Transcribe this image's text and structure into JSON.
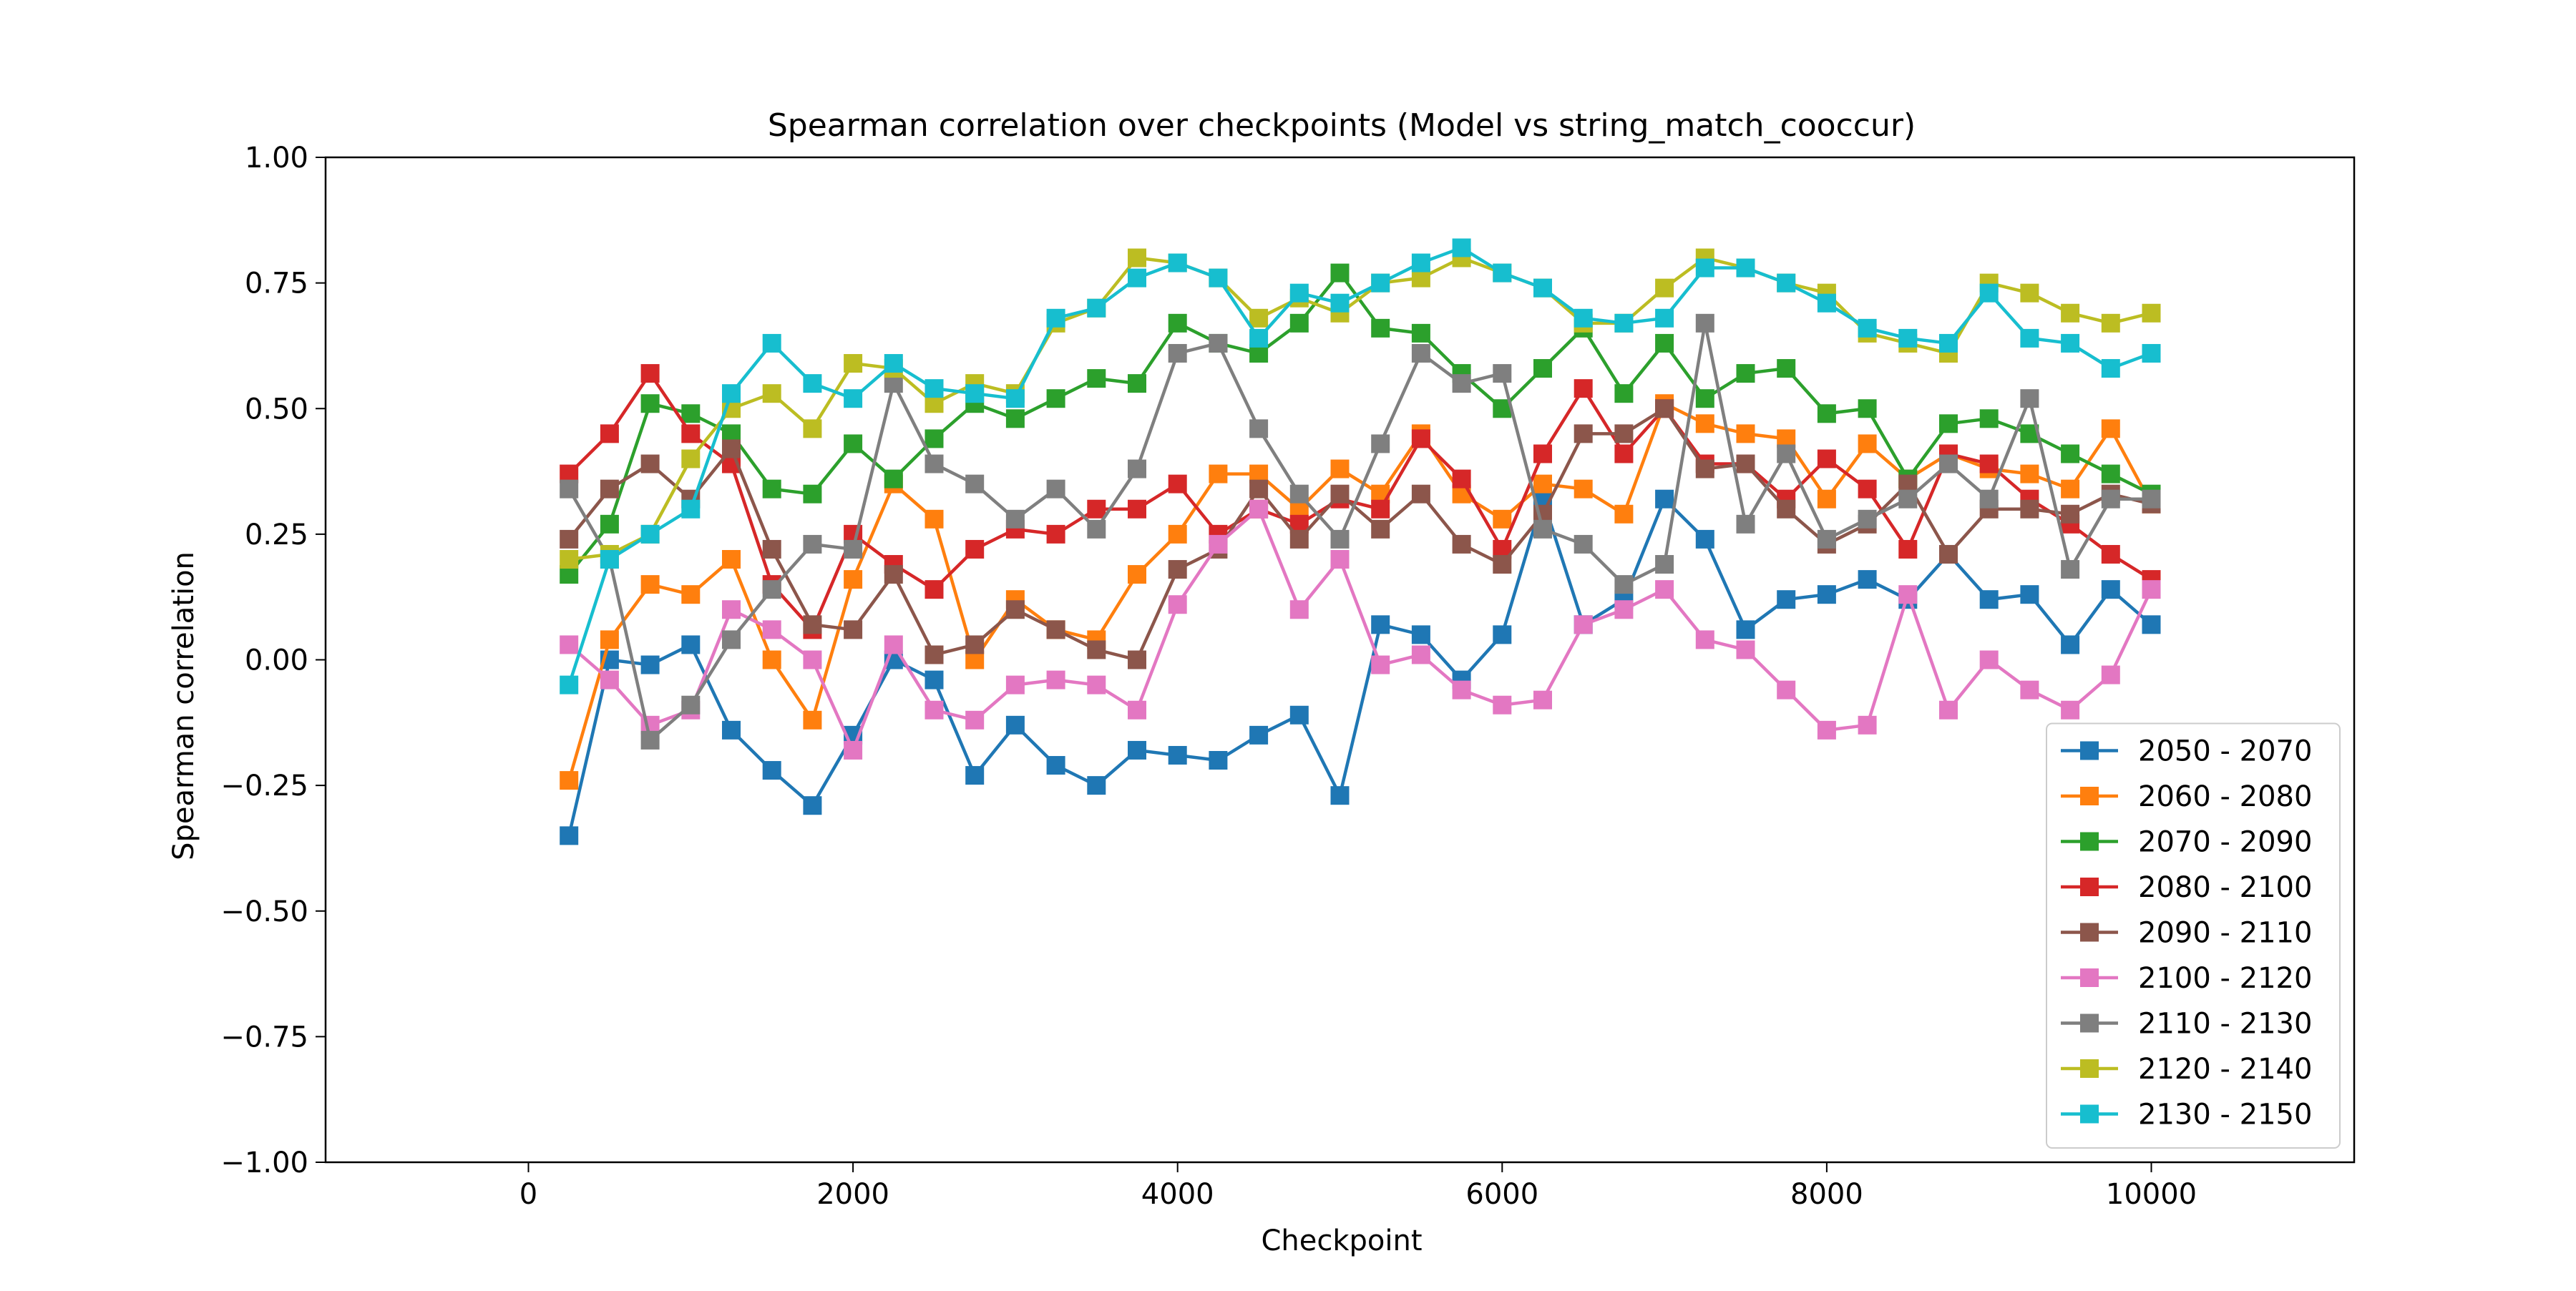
{
  "chart_data": {
    "type": "line",
    "title": "Spearman correlation over checkpoints (Model vs string_match_cooccur)",
    "xlabel": "Checkpoint",
    "ylabel": "Spearman correlation",
    "xlim": [
      -1250,
      11250
    ],
    "ylim": [
      -1.0,
      1.0
    ],
    "xticks": [
      0,
      2000,
      4000,
      6000,
      8000,
      10000
    ],
    "xtick_labels": [
      "0",
      "2000",
      "4000",
      "6000",
      "8000",
      "10000"
    ],
    "yticks": [
      -1.0,
      -0.75,
      -0.5,
      -0.25,
      0.0,
      0.25,
      0.5,
      0.75,
      1.0
    ],
    "ytick_labels": [
      "−1.00",
      "−0.75",
      "−0.50",
      "−0.25",
      "0.00",
      "0.25",
      "0.50",
      "0.75",
      "1.00"
    ],
    "grid": false,
    "legend_position": "lower-right",
    "marker": "square",
    "x": [
      250,
      500,
      750,
      1000,
      1250,
      1500,
      1750,
      2000,
      2250,
      2500,
      2750,
      3000,
      3250,
      3500,
      3750,
      4000,
      4250,
      4500,
      4750,
      5000,
      5250,
      5500,
      5750,
      6000,
      6250,
      6500,
      6750,
      7000,
      7250,
      7500,
      7750,
      8000,
      8250,
      8500,
      8750,
      9000,
      9250,
      9500,
      9750,
      10000
    ],
    "series": [
      {
        "name": "2050 - 2070",
        "color": "#1f77b4",
        "values": [
          -0.35,
          0.0,
          -0.01,
          0.03,
          -0.14,
          -0.22,
          -0.29,
          -0.15,
          0.0,
          -0.04,
          -0.23,
          -0.13,
          -0.21,
          -0.25,
          -0.18,
          -0.19,
          -0.2,
          -0.15,
          -0.11,
          -0.27,
          0.07,
          0.05,
          -0.04,
          0.05,
          0.32,
          0.07,
          0.12,
          0.32,
          0.24,
          0.06,
          0.12,
          0.13,
          0.16,
          0.12,
          0.21,
          0.12,
          0.13,
          0.03,
          0.14,
          0.07
        ]
      },
      {
        "name": "2060 - 2080",
        "color": "#ff7f0e",
        "values": [
          -0.24,
          0.04,
          0.15,
          0.13,
          0.2,
          0.0,
          -0.12,
          0.16,
          0.35,
          0.28,
          0.0,
          0.12,
          0.06,
          0.04,
          0.17,
          0.25,
          0.37,
          0.37,
          0.3,
          0.38,
          0.33,
          0.45,
          0.33,
          0.28,
          0.35,
          0.34,
          0.29,
          0.51,
          0.47,
          0.45,
          0.44,
          0.32,
          0.43,
          0.36,
          0.41,
          0.38,
          0.37,
          0.34,
          0.46,
          0.31
        ]
      },
      {
        "name": "2070 - 2090",
        "color": "#2ca02c",
        "values": [
          0.17,
          0.27,
          0.51,
          0.49,
          0.45,
          0.34,
          0.33,
          0.43,
          0.36,
          0.44,
          0.51,
          0.48,
          0.52,
          0.56,
          0.55,
          0.67,
          0.63,
          0.61,
          0.67,
          0.77,
          0.66,
          0.65,
          0.57,
          0.5,
          0.58,
          0.66,
          0.53,
          0.63,
          0.52,
          0.57,
          0.58,
          0.49,
          0.5,
          0.36,
          0.47,
          0.48,
          0.45,
          0.41,
          0.37,
          0.33
        ]
      },
      {
        "name": "2080 - 2100",
        "color": "#d62728",
        "values": [
          0.37,
          0.45,
          0.57,
          0.45,
          0.39,
          0.15,
          0.06,
          0.25,
          0.19,
          0.14,
          0.22,
          0.26,
          0.25,
          0.3,
          0.3,
          0.35,
          0.25,
          0.3,
          0.27,
          0.32,
          0.3,
          0.44,
          0.36,
          0.22,
          0.41,
          0.54,
          0.41,
          0.5,
          0.39,
          0.39,
          0.32,
          0.4,
          0.34,
          0.22,
          0.41,
          0.39,
          0.32,
          0.27,
          0.21,
          0.16
        ]
      },
      {
        "name": "2090 - 2110",
        "color": "#8c564b",
        "values": [
          0.24,
          0.34,
          0.39,
          0.32,
          0.42,
          0.22,
          0.07,
          0.06,
          0.17,
          0.01,
          0.03,
          0.1,
          0.06,
          0.02,
          0.0,
          0.18,
          0.22,
          0.34,
          0.24,
          0.33,
          0.26,
          0.33,
          0.23,
          0.19,
          0.29,
          0.45,
          0.45,
          0.5,
          0.38,
          0.39,
          0.3,
          0.23,
          0.27,
          0.35,
          0.21,
          0.3,
          0.3,
          0.29,
          0.33,
          0.31
        ]
      },
      {
        "name": "2100 - 2120",
        "color": "#e377c2",
        "values": [
          0.03,
          -0.04,
          -0.13,
          -0.1,
          0.1,
          0.06,
          0.0,
          -0.18,
          0.03,
          -0.1,
          -0.12,
          -0.05,
          -0.04,
          -0.05,
          -0.1,
          0.11,
          0.23,
          0.3,
          0.1,
          0.2,
          -0.01,
          0.01,
          -0.06,
          -0.09,
          -0.08,
          0.07,
          0.1,
          0.14,
          0.04,
          0.02,
          -0.06,
          -0.14,
          -0.13,
          0.13,
          -0.1,
          0.0,
          -0.06,
          -0.1,
          -0.03,
          0.14
        ]
      },
      {
        "name": "2110 - 2130",
        "color": "#7f7f7f",
        "values": [
          0.34,
          0.2,
          -0.16,
          -0.09,
          0.04,
          0.14,
          0.23,
          0.22,
          0.55,
          0.39,
          0.35,
          0.28,
          0.34,
          0.26,
          0.38,
          0.61,
          0.63,
          0.46,
          0.33,
          0.24,
          0.43,
          0.61,
          0.55,
          0.57,
          0.26,
          0.23,
          0.15,
          0.19,
          0.67,
          0.27,
          0.41,
          0.24,
          0.28,
          0.32,
          0.39,
          0.32,
          0.52,
          0.18,
          0.32,
          0.32
        ]
      },
      {
        "name": "2120 - 2140",
        "color": "#bcbd22",
        "values": [
          0.2,
          0.21,
          0.25,
          0.4,
          0.5,
          0.53,
          0.46,
          0.59,
          0.58,
          0.51,
          0.55,
          0.53,
          0.67,
          0.7,
          0.8,
          0.79,
          0.76,
          0.68,
          0.72,
          0.69,
          0.75,
          0.76,
          0.8,
          0.77,
          0.74,
          0.67,
          0.67,
          0.74,
          0.8,
          0.78,
          0.75,
          0.73,
          0.65,
          0.63,
          0.61,
          0.75,
          0.73,
          0.69,
          0.67,
          0.69
        ]
      },
      {
        "name": "2130 - 2150",
        "color": "#17becf",
        "values": [
          -0.05,
          0.2,
          0.25,
          0.3,
          0.53,
          0.63,
          0.55,
          0.52,
          0.59,
          0.54,
          0.53,
          0.52,
          0.68,
          0.7,
          0.76,
          0.79,
          0.76,
          0.64,
          0.73,
          0.71,
          0.75,
          0.79,
          0.82,
          0.77,
          0.74,
          0.68,
          0.67,
          0.68,
          0.78,
          0.78,
          0.75,
          0.71,
          0.66,
          0.64,
          0.63,
          0.73,
          0.64,
          0.63,
          0.58,
          0.61
        ]
      }
    ]
  }
}
